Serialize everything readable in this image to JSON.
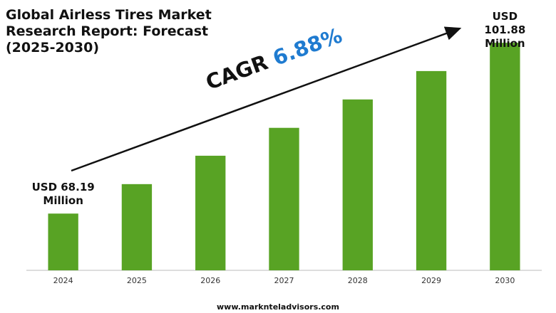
{
  "chart_data": {
    "type": "bar",
    "title": "Global Airless Tires Market\nResearch Report: Forecast\n(2025-2030)",
    "categories": [
      "2024",
      "2025",
      "2026",
      "2027",
      "2028",
      "2029",
      "2030"
    ],
    "values": [
      68.19,
      74.0,
      79.6,
      85.1,
      90.7,
      96.3,
      101.88
    ],
    "value_labels": [
      "USD 68.19\nMillion",
      null,
      null,
      null,
      null,
      null,
      "USD 101.88\nMillion"
    ],
    "color": "#58a324",
    "ylim": [
      57,
      104
    ],
    "annotation": {
      "label": "CAGR",
      "value": "6.88%"
    },
    "source": "www.marknteladvisors.com"
  }
}
